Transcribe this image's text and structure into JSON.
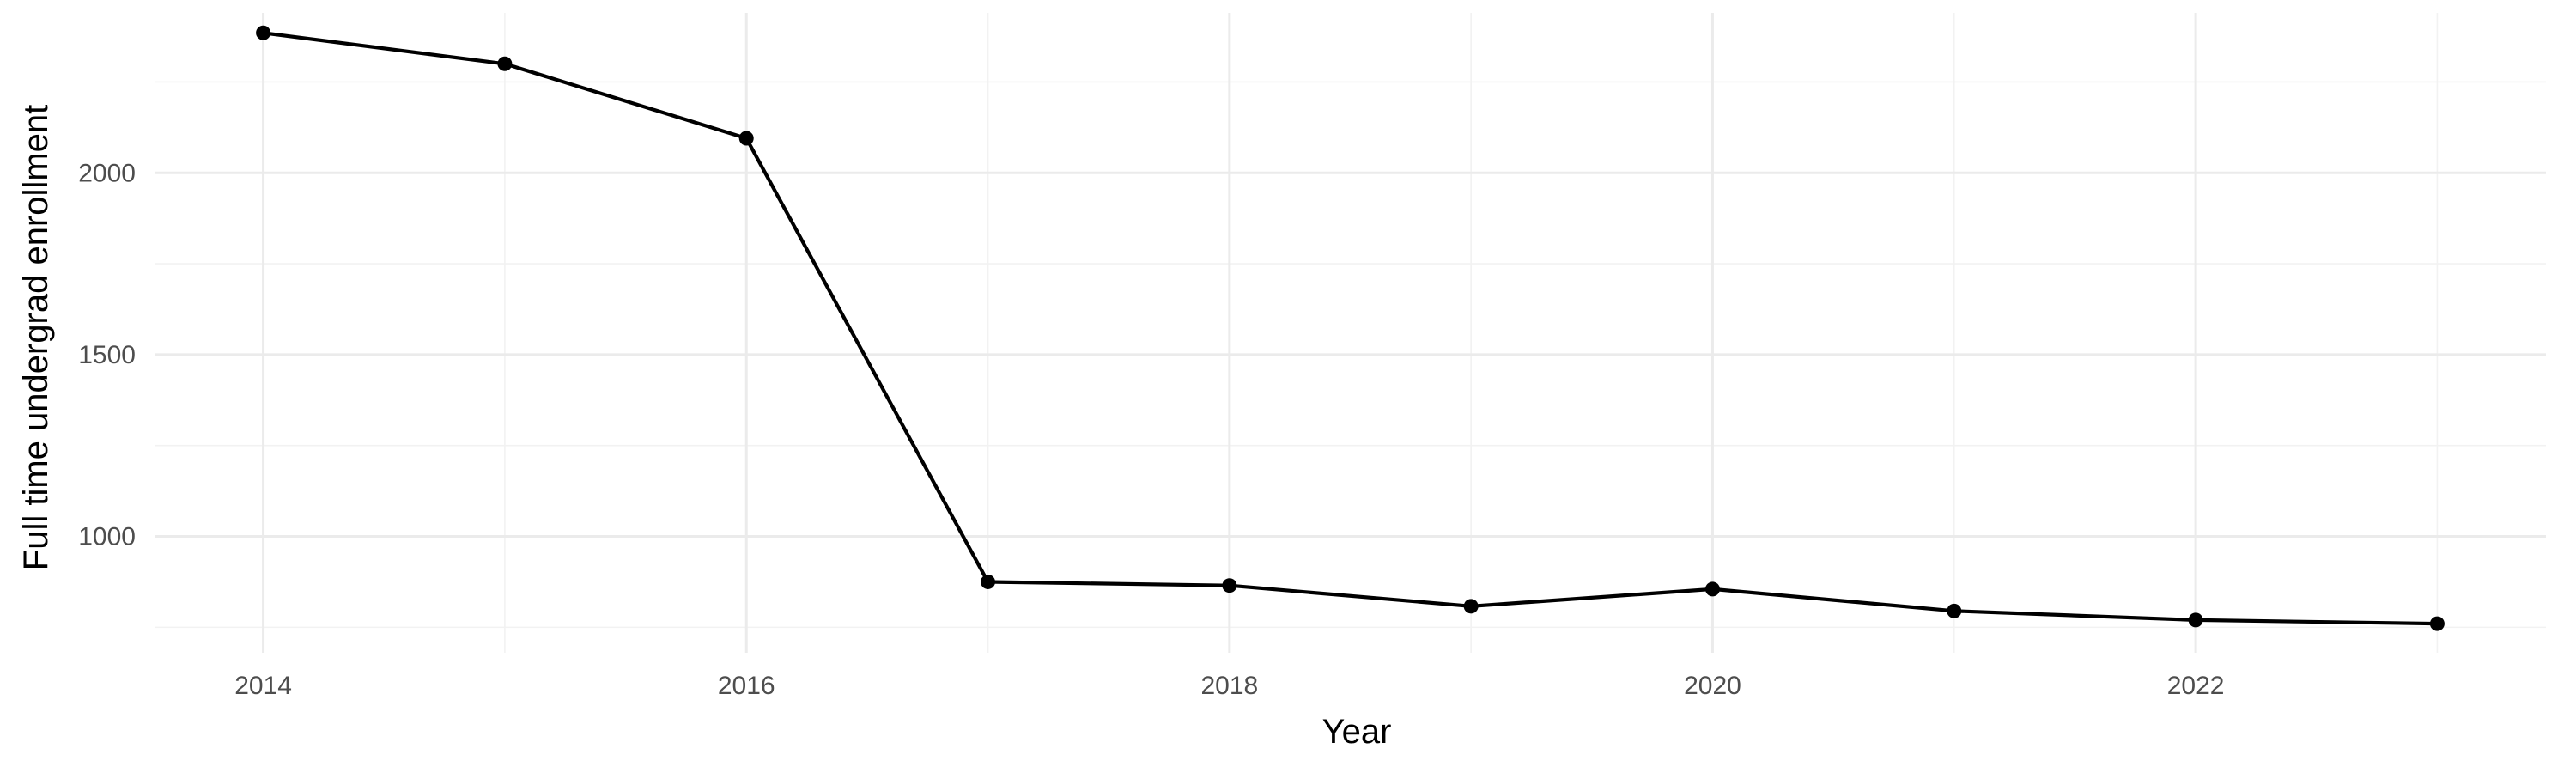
{
  "chart_data": {
    "type": "line",
    "title": "",
    "xlabel": "Year",
    "ylabel": "Full time undergrad enrollment",
    "x": [
      2014,
      2015,
      2016,
      2017,
      2018,
      2019,
      2020,
      2021,
      2022,
      2023
    ],
    "series": [
      {
        "values": [
          2385,
          2300,
          2095,
          875,
          865,
          808,
          855,
          795,
          770,
          760
        ]
      }
    ],
    "xlim": [
      2013.55,
      2023.45
    ],
    "ylim": [
      680,
      2440
    ],
    "x_ticks": [
      2014,
      2016,
      2018,
      2020,
      2022
    ],
    "x_tick_labels": [
      "2014",
      "2016",
      "2018",
      "2020",
      "2022"
    ],
    "x_minor_ticks": [
      2015,
      2017,
      2019,
      2021,
      2023
    ],
    "y_ticks": [
      1000,
      1500,
      2000
    ],
    "y_tick_labels": [
      "1000",
      "1500",
      "2000"
    ],
    "y_minor_ticks": [
      750,
      1250,
      1750,
      2250
    ],
    "grid": true,
    "legend": "none",
    "colors": {
      "line": "#000000",
      "background": "#ffffff",
      "grid": "#ebebeb",
      "tick_text": "#4d4d4d"
    }
  }
}
